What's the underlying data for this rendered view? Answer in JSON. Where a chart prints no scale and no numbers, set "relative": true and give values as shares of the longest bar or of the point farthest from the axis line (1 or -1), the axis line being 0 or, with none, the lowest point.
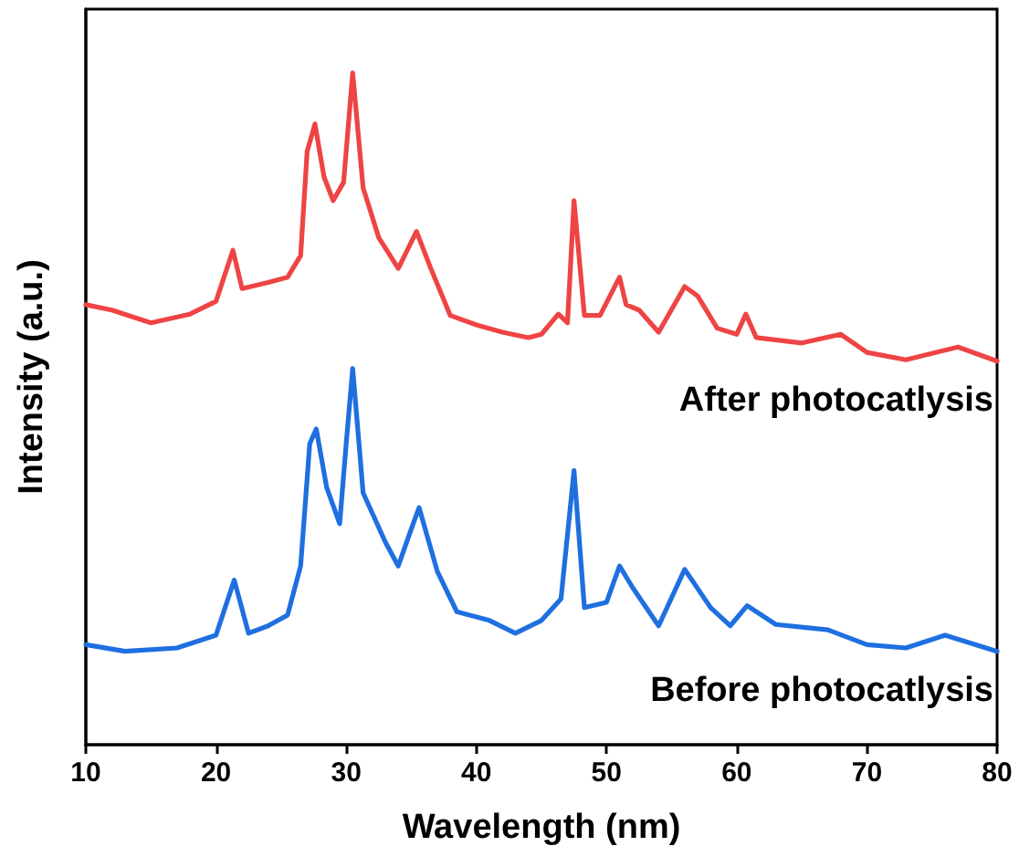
{
  "chart_data": {
    "type": "line",
    "xlabel": "Wavelength (nm)",
    "ylabel": "Intensity (a.u.)",
    "relative": true,
    "xlim": [
      10,
      80
    ],
    "xticks": [
      10,
      20,
      30,
      40,
      50,
      60,
      70,
      80
    ],
    "grid": false,
    "legend": false,
    "marker": "none",
    "line_style": "solid",
    "series": [
      {
        "name": "After photocatlysis",
        "color": "#ef4444",
        "x": [
          10,
          12,
          15,
          18,
          20,
          21.3,
          22,
          24,
          25.5,
          26.5,
          27,
          27.6,
          28.3,
          29,
          29.8,
          30.5,
          31.3,
          32.5,
          34,
          35.4,
          36.5,
          38,
          40,
          42,
          44,
          45,
          46.3,
          47,
          47.5,
          48.3,
          49.5,
          51,
          51.5,
          52.5,
          54,
          56,
          57,
          58.5,
          60,
          60.7,
          61.5,
          65,
          68,
          70,
          73,
          77,
          80
        ],
        "values": [
          0.655,
          0.647,
          0.628,
          0.641,
          0.66,
          0.736,
          0.679,
          0.688,
          0.696,
          0.728,
          0.883,
          0.924,
          0.845,
          0.81,
          0.837,
          1.0,
          0.829,
          0.755,
          0.709,
          0.764,
          0.709,
          0.639,
          0.625,
          0.614,
          0.606,
          0.611,
          0.641,
          0.628,
          0.81,
          0.639,
          0.639,
          0.696,
          0.655,
          0.647,
          0.614,
          0.682,
          0.668,
          0.62,
          0.611,
          0.641,
          0.606,
          0.598,
          0.611,
          0.584,
          0.573,
          0.592,
          0.571
        ]
      },
      {
        "name": "Before photocatlysis",
        "color": "#1f6fe0",
        "x": [
          10,
          13,
          17,
          20,
          21.4,
          22.5,
          24,
          25.5,
          26.5,
          27.2,
          27.7,
          28.5,
          29.5,
          30,
          30.5,
          31.3,
          33,
          34,
          35,
          35.6,
          37,
          38.5,
          41,
          43,
          45,
          46.5,
          47.5,
          48.3,
          50,
          51,
          52,
          54,
          56,
          58,
          59.5,
          60.8,
          63,
          67,
          70,
          73,
          76,
          80
        ],
        "values": [
          0.149,
          0.139,
          0.144,
          0.163,
          0.245,
          0.166,
          0.177,
          0.193,
          0.266,
          0.448,
          0.47,
          0.383,
          0.329,
          0.448,
          0.56,
          0.375,
          0.302,
          0.266,
          0.321,
          0.353,
          0.258,
          0.198,
          0.185,
          0.166,
          0.185,
          0.217,
          0.408,
          0.204,
          0.212,
          0.266,
          0.234,
          0.177,
          0.261,
          0.204,
          0.177,
          0.207,
          0.179,
          0.171,
          0.149,
          0.144,
          0.163,
          0.139
        ]
      }
    ]
  }
}
